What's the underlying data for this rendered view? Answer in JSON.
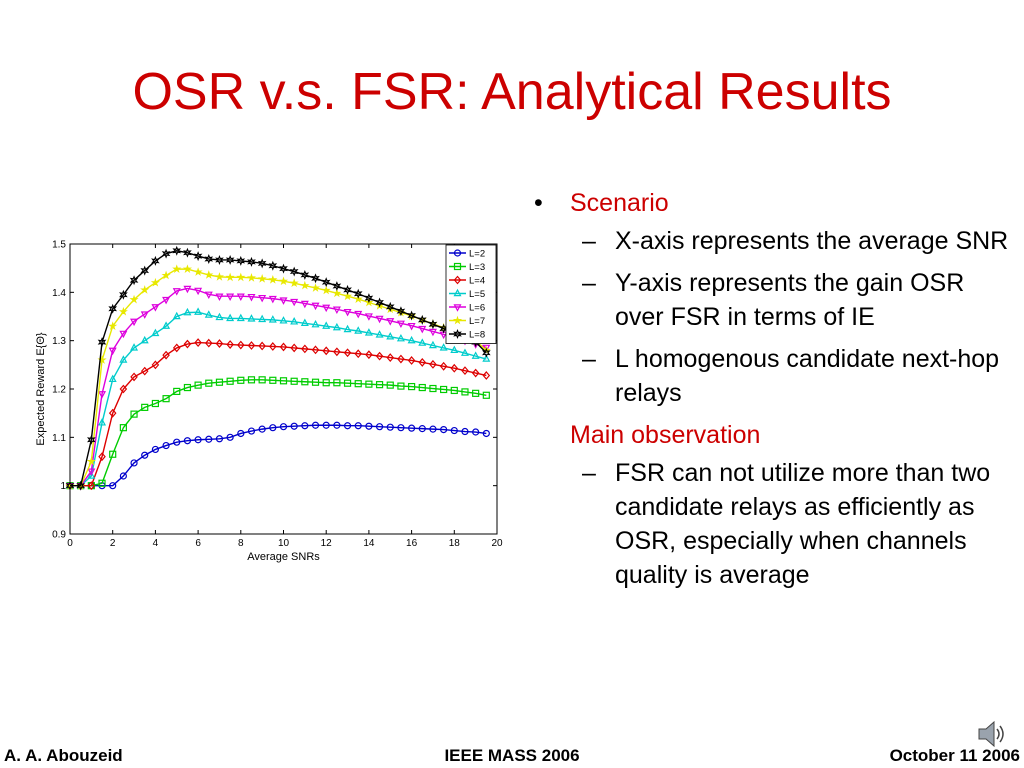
{
  "slide": {
    "title": "OSR v.s. FSR: Analytical Results",
    "bullets": {
      "scenario": "Scenario",
      "scenario_items": [
        "X-axis represents the average SNR",
        "Y-axis represents the gain OSR over FSR in terms of IE",
        "L homogenous candidate next-hop relays"
      ],
      "observation": "Main observation",
      "observation_items": [
        "FSR can not utilize more than two candidate relays as efficiently as OSR, especially when channels quality is average"
      ]
    },
    "footer": {
      "author": "A. A. Abouzeid",
      "venue": "IEEE MASS 2006",
      "date": "October 11 2006"
    },
    "icons": {
      "audio": "speaker-icon"
    }
  },
  "chart_data": {
    "type": "line",
    "title": "",
    "xlabel": "Average SNRs",
    "ylabel": "Expected Reward E{Θ}",
    "xlim": [
      0,
      20
    ],
    "ylim": [
      0.9,
      1.5
    ],
    "xticks": [
      "0",
      "2",
      "4",
      "6",
      "8",
      "10",
      "12",
      "14",
      "16",
      "18",
      "20"
    ],
    "yticks": [
      "0.9",
      "1",
      "1.1",
      "1.2",
      "1.3",
      "1.4",
      "1.5"
    ],
    "legend_position": "top-right",
    "grid": false,
    "x": [
      0,
      0.5,
      1,
      1.5,
      2,
      2.5,
      3,
      3.5,
      4,
      4.5,
      5,
      5.5,
      6,
      6.5,
      7,
      7.5,
      8,
      8.5,
      9,
      9.5,
      10,
      10.5,
      11,
      11.5,
      12,
      12.5,
      13,
      13.5,
      14,
      14.5,
      15,
      15.5,
      16,
      16.5,
      17,
      17.5,
      18,
      18.5,
      19,
      19.5
    ],
    "series": [
      {
        "name": "L=2",
        "color": "#0000cc",
        "marker": "circle",
        "values": [
          1.0,
          1.0,
          1.0,
          1.0,
          1.0,
          1.02,
          1.047,
          1.063,
          1.075,
          1.083,
          1.09,
          1.093,
          1.095,
          1.096,
          1.097,
          1.1,
          1.108,
          1.113,
          1.117,
          1.12,
          1.122,
          1.123,
          1.124,
          1.125,
          1.125,
          1.125,
          1.124,
          1.124,
          1.123,
          1.122,
          1.121,
          1.12,
          1.119,
          1.118,
          1.117,
          1.116,
          1.114,
          1.112,
          1.111,
          1.108
        ]
      },
      {
        "name": "L=3",
        "color": "#00cc00",
        "marker": "square",
        "values": [
          1.0,
          1.0,
          1.0,
          1.005,
          1.065,
          1.12,
          1.148,
          1.162,
          1.17,
          1.18,
          1.195,
          1.203,
          1.208,
          1.212,
          1.214,
          1.216,
          1.218,
          1.219,
          1.219,
          1.218,
          1.217,
          1.216,
          1.215,
          1.214,
          1.213,
          1.213,
          1.212,
          1.211,
          1.21,
          1.209,
          1.208,
          1.206,
          1.205,
          1.203,
          1.201,
          1.199,
          1.197,
          1.194,
          1.191,
          1.187
        ]
      },
      {
        "name": "L=4",
        "color": "#dd0000",
        "marker": "diamond",
        "values": [
          1.0,
          1.0,
          1.0,
          1.06,
          1.15,
          1.2,
          1.225,
          1.237,
          1.25,
          1.27,
          1.285,
          1.293,
          1.296,
          1.295,
          1.294,
          1.292,
          1.291,
          1.29,
          1.289,
          1.288,
          1.287,
          1.285,
          1.283,
          1.281,
          1.279,
          1.277,
          1.275,
          1.273,
          1.271,
          1.268,
          1.265,
          1.262,
          1.259,
          1.255,
          1.251,
          1.247,
          1.243,
          1.238,
          1.233,
          1.228
        ]
      },
      {
        "name": "L=5",
        "color": "#00cccc",
        "marker": "triangle-up",
        "values": [
          1.0,
          1.0,
          1.02,
          1.13,
          1.22,
          1.26,
          1.285,
          1.3,
          1.315,
          1.33,
          1.35,
          1.358,
          1.359,
          1.353,
          1.348,
          1.346,
          1.346,
          1.345,
          1.344,
          1.343,
          1.341,
          1.339,
          1.336,
          1.333,
          1.33,
          1.327,
          1.323,
          1.32,
          1.316,
          1.312,
          1.308,
          1.304,
          1.3,
          1.295,
          1.29,
          1.285,
          1.28,
          1.274,
          1.268,
          1.262
        ]
      },
      {
        "name": "L=6",
        "color": "#dd00dd",
        "marker": "triangle-down",
        "values": [
          1.0,
          1.0,
          1.03,
          1.19,
          1.28,
          1.315,
          1.34,
          1.355,
          1.37,
          1.385,
          1.403,
          1.408,
          1.404,
          1.396,
          1.392,
          1.392,
          1.392,
          1.391,
          1.389,
          1.387,
          1.384,
          1.381,
          1.377,
          1.373,
          1.369,
          1.365,
          1.36,
          1.356,
          1.351,
          1.346,
          1.341,
          1.336,
          1.331,
          1.325,
          1.319,
          1.313,
          1.307,
          1.3,
          1.293,
          1.286
        ]
      },
      {
        "name": "L=7",
        "color": "#e8e800",
        "marker": "star",
        "values": [
          1.0,
          1.0,
          1.05,
          1.26,
          1.33,
          1.36,
          1.385,
          1.405,
          1.42,
          1.435,
          1.448,
          1.448,
          1.442,
          1.436,
          1.432,
          1.431,
          1.431,
          1.43,
          1.428,
          1.426,
          1.423,
          1.419,
          1.414,
          1.409,
          1.404,
          1.398,
          1.392,
          1.386,
          1.379,
          1.372,
          1.365,
          1.358,
          1.351,
          1.343,
          1.335,
          1.327,
          1.318,
          1.309,
          1.3,
          1.28
        ]
      },
      {
        "name": "L=8",
        "color": "#000000",
        "marker": "hexagram",
        "values": [
          1.0,
          1.0,
          1.095,
          1.297,
          1.366,
          1.395,
          1.425,
          1.445,
          1.465,
          1.48,
          1.486,
          1.482,
          1.475,
          1.469,
          1.467,
          1.467,
          1.465,
          1.463,
          1.46,
          1.455,
          1.449,
          1.443,
          1.436,
          1.429,
          1.421,
          1.413,
          1.405,
          1.397,
          1.388,
          1.379,
          1.37,
          1.361,
          1.352,
          1.343,
          1.334,
          1.325,
          1.316,
          1.307,
          1.297,
          1.275
        ]
      }
    ]
  }
}
